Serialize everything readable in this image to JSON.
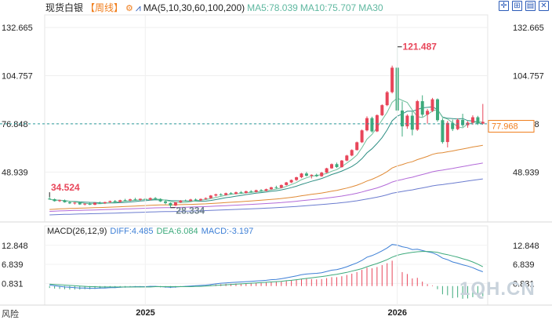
{
  "header": {
    "instrument": "现货白银",
    "period": "【周线】",
    "ma_label": "MA(5,10,30,60,100,200)",
    "ma5": "MA5:78.039",
    "ma10": "MA10:75.707",
    "ma30": "MA30"
  },
  "macd_header": {
    "label": "MACD(26,12,9)",
    "diff": "DIFF:4.485",
    "dea": "DEA:6.084",
    "macd": "MACD:-3.197"
  },
  "price_axis": {
    "left_ticks": [
      "132.665",
      "104.757",
      "76.848",
      "48.939"
    ],
    "right_ticks": [
      "132.665",
      "104.757",
      "76.848",
      "48.939"
    ],
    "current_price": "77.968"
  },
  "macd_axis": {
    "ticks": [
      "12.848",
      "6.839",
      "0.831"
    ]
  },
  "x_labels": [
    "2025",
    "2026"
  ],
  "annotations": {
    "high": "121.487",
    "low": "28.334",
    "left_high": "34.524"
  },
  "watermark": "1QH.CN",
  "disclaimer": "风险",
  "colors": {
    "up": "#e8465a",
    "down": "#3daa7c",
    "ma5": "#6fbf9b",
    "ma10": "#2e8f84",
    "ma30": "#e08a35",
    "ma60": "#b36ad8",
    "ma100": "#6b7ccf"
  },
  "chart_data": {
    "type": "candlestick",
    "ylim": [
      20,
      140
    ],
    "macd_ylim": [
      -6,
      16
    ],
    "candles": [
      [
        33.5,
        34.5,
        32.9,
        33.2
      ],
      [
        33.2,
        33.6,
        31.8,
        32.1
      ],
      [
        32.1,
        32.9,
        31.6,
        32.6
      ],
      [
        32.6,
        33.0,
        31.2,
        31.4
      ],
      [
        31.4,
        31.9,
        30.4,
        30.8
      ],
      [
        30.8,
        31.5,
        30.1,
        31.2
      ],
      [
        31.2,
        31.6,
        29.9,
        30.2
      ],
      [
        30.2,
        30.9,
        29.6,
        30.6
      ],
      [
        30.6,
        31.1,
        29.8,
        30.0
      ],
      [
        30.0,
        31.4,
        29.7,
        31.1
      ],
      [
        31.1,
        31.8,
        30.5,
        30.9
      ],
      [
        30.9,
        31.7,
        30.4,
        31.5
      ],
      [
        31.5,
        32.4,
        31.0,
        32.1
      ],
      [
        32.1,
        32.7,
        31.3,
        31.6
      ],
      [
        31.6,
        32.9,
        31.2,
        32.6
      ],
      [
        32.6,
        33.4,
        32.0,
        32.4
      ],
      [
        32.4,
        33.5,
        32.0,
        33.1
      ],
      [
        33.1,
        34.0,
        32.5,
        32.8
      ],
      [
        32.8,
        33.6,
        32.2,
        33.4
      ],
      [
        33.4,
        33.9,
        32.6,
        32.9
      ],
      [
        32.9,
        34.2,
        32.5,
        33.8
      ],
      [
        33.8,
        34.4,
        33.0,
        33.3
      ],
      [
        33.3,
        33.7,
        31.6,
        31.9
      ],
      [
        31.9,
        32.6,
        30.2,
        31.0
      ],
      [
        31.0,
        31.3,
        28.3,
        29.5
      ],
      [
        29.5,
        31.6,
        29.2,
        31.4
      ],
      [
        31.4,
        32.7,
        31.0,
        32.4
      ],
      [
        32.4,
        33.0,
        31.8,
        32.2
      ],
      [
        32.2,
        33.4,
        31.9,
        33.0
      ],
      [
        33.0,
        33.6,
        32.2,
        32.5
      ],
      [
        32.5,
        33.6,
        32.1,
        33.3
      ],
      [
        33.3,
        34.2,
        32.9,
        33.8
      ],
      [
        33.8,
        35.6,
        33.5,
        35.3
      ],
      [
        35.3,
        36.4,
        34.7,
        36.0
      ],
      [
        36.0,
        36.6,
        35.2,
        35.6
      ],
      [
        35.6,
        37.0,
        35.3,
        36.7
      ],
      [
        36.7,
        37.3,
        35.9,
        36.3
      ],
      [
        36.3,
        37.6,
        36.0,
        37.2
      ],
      [
        37.2,
        37.9,
        36.4,
        36.8
      ],
      [
        36.8,
        38.1,
        36.5,
        37.8
      ],
      [
        37.8,
        38.4,
        37.0,
        37.4
      ],
      [
        37.4,
        38.7,
        37.1,
        38.4
      ],
      [
        38.4,
        39.0,
        37.6,
        38.0
      ],
      [
        38.0,
        39.3,
        37.7,
        39.0
      ],
      [
        39.0,
        40.4,
        38.6,
        40.1
      ],
      [
        40.1,
        41.0,
        39.3,
        39.8
      ],
      [
        39.8,
        41.7,
        39.5,
        41.4
      ],
      [
        41.4,
        43.2,
        41.1,
        42.9
      ],
      [
        42.9,
        44.6,
        42.5,
        44.3
      ],
      [
        44.3,
        46.2,
        43.8,
        45.9
      ],
      [
        45.9,
        48.4,
        45.4,
        48.1
      ],
      [
        48.1,
        49.0,
        46.4,
        46.8
      ],
      [
        46.8,
        47.6,
        45.2,
        47.3
      ],
      [
        47.3,
        48.0,
        46.1,
        46.5
      ],
      [
        46.5,
        49.0,
        46.2,
        48.6
      ],
      [
        48.6,
        51.4,
        48.3,
        51.1
      ],
      [
        51.1,
        53.9,
        50.8,
        53.5
      ],
      [
        53.5,
        54.4,
        51.3,
        51.8
      ],
      [
        51.8,
        55.9,
        51.5,
        55.6
      ],
      [
        55.6,
        58.9,
        55.2,
        58.5
      ],
      [
        58.5,
        62.1,
        58.1,
        61.7
      ],
      [
        61.7,
        66.6,
        61.4,
        66.2
      ],
      [
        66.2,
        73.6,
        65.8,
        73.1
      ],
      [
        73.1,
        81.2,
        72.5,
        80.2
      ],
      [
        80.2,
        81.0,
        71.8,
        72.5
      ],
      [
        72.5,
        82.3,
        72.1,
        81.9
      ],
      [
        81.9,
        88.2,
        81.4,
        87.7
      ],
      [
        87.7,
        95.9,
        87.1,
        95.2
      ],
      [
        95.2,
        110.6,
        94.5,
        109.4
      ],
      [
        109.4,
        121.5,
        83.4,
        84.6
      ],
      [
        84.6,
        89.8,
        69.5,
        75.4
      ],
      [
        75.4,
        82.4,
        74.0,
        81.6
      ],
      [
        81.6,
        84.3,
        70.2,
        73.5
      ],
      [
        73.5,
        90.7,
        72.8,
        90.0
      ],
      [
        90.0,
        93.4,
        81.0,
        82.2
      ],
      [
        82.2,
        85.5,
        77.0,
        84.4
      ],
      [
        84.4,
        91.9,
        83.7,
        91.1
      ],
      [
        91.1,
        91.6,
        78.1,
        79.0
      ],
      [
        79.0,
        80.1,
        65.4,
        66.3
      ],
      [
        66.3,
        78.6,
        63.2,
        77.4
      ],
      [
        77.4,
        79.3,
        72.7,
        73.8
      ],
      [
        73.8,
        80.0,
        73.2,
        79.2
      ],
      [
        79.2,
        82.7,
        75.0,
        76.1
      ],
      [
        76.1,
        78.4,
        74.6,
        77.6
      ],
      [
        77.6,
        81.8,
        76.3,
        80.7
      ],
      [
        80.7,
        81.5,
        76.2,
        77.0
      ],
      [
        77.0,
        88.4,
        76.7,
        78.0
      ]
    ],
    "macd_hist": [
      -0.6,
      -0.8,
      -0.9,
      -1.0,
      -1.1,
      -1.1,
      -1.1,
      -1.0,
      -1.0,
      -0.9,
      -0.8,
      -0.7,
      -0.6,
      -0.6,
      -0.5,
      -0.5,
      -0.4,
      -0.4,
      -0.4,
      -0.3,
      -0.3,
      -0.3,
      -0.4,
      -0.5,
      -0.6,
      -0.5,
      -0.3,
      -0.2,
      -0.1,
      -0.1,
      0.0,
      0.1,
      0.3,
      0.5,
      0.6,
      0.7,
      0.7,
      0.8,
      0.8,
      0.9,
      0.9,
      1.0,
      1.0,
      1.1,
      1.2,
      1.3,
      1.4,
      1.6,
      1.8,
      2.0,
      2.3,
      2.3,
      2.2,
      2.1,
      2.2,
      2.5,
      2.8,
      2.8,
      3.1,
      3.5,
      3.9,
      4.4,
      5.1,
      5.8,
      5.6,
      6.0,
      6.6,
      7.2,
      8.0,
      6.2,
      4.4,
      3.8,
      2.4,
      2.6,
      1.4,
      0.6,
      0.2,
      -1.0,
      -2.6,
      -2.9,
      -3.8,
      -3.6,
      -4.0,
      -3.9,
      -3.5,
      -3.4,
      -3.2
    ],
    "macd_diff": [
      0.3,
      0.1,
      -0.1,
      -0.3,
      -0.4,
      -0.5,
      -0.6,
      -0.6,
      -0.7,
      -0.7,
      -0.6,
      -0.6,
      -0.5,
      -0.5,
      -0.4,
      -0.3,
      -0.3,
      -0.2,
      -0.2,
      -0.2,
      -0.1,
      -0.1,
      -0.2,
      -0.3,
      -0.4,
      -0.3,
      -0.2,
      -0.1,
      0.0,
      0.1,
      0.2,
      0.3,
      0.5,
      0.7,
      0.9,
      1.0,
      1.1,
      1.2,
      1.3,
      1.4,
      1.5,
      1.6,
      1.7,
      1.8,
      2.0,
      2.1,
      2.3,
      2.6,
      2.9,
      3.2,
      3.6,
      3.8,
      3.9,
      4.0,
      4.2,
      4.6,
      5.0,
      5.2,
      5.6,
      6.1,
      6.7,
      7.3,
      8.1,
      9.1,
      9.6,
      10.3,
      11.1,
      12.0,
      13.1,
      12.9,
      12.4,
      12.1,
      11.5,
      11.6,
      11.2,
      10.8,
      10.5,
      9.8,
      8.8,
      8.3,
      7.6,
      7.2,
      6.7,
      6.3,
      5.8,
      5.1,
      4.5
    ],
    "macd_dea": [
      0.6,
      0.5,
      0.4,
      0.3,
      0.2,
      0.1,
      0.0,
      -0.1,
      -0.2,
      -0.2,
      -0.3,
      -0.3,
      -0.3,
      -0.3,
      -0.3,
      -0.3,
      -0.3,
      -0.3,
      -0.3,
      -0.3,
      -0.3,
      -0.2,
      -0.2,
      -0.2,
      -0.2,
      -0.2,
      -0.2,
      -0.2,
      -0.2,
      -0.1,
      -0.1,
      0.0,
      0.1,
      0.2,
      0.3,
      0.4,
      0.5,
      0.6,
      0.7,
      0.8,
      0.9,
      1.0,
      1.1,
      1.2,
      1.3,
      1.4,
      1.5,
      1.7,
      1.8,
      2.0,
      2.2,
      2.4,
      2.6,
      2.8,
      3.0,
      3.2,
      3.5,
      3.7,
      4.0,
      4.3,
      4.7,
      5.1,
      5.5,
      6.1,
      6.6,
      7.1,
      7.7,
      8.3,
      9.1,
      9.7,
      10.1,
      10.4,
      10.6,
      10.8,
      10.9,
      10.9,
      10.8,
      10.6,
      10.2,
      9.9,
      9.5,
      9.1,
      8.6,
      8.2,
      7.6,
      6.9,
      6.1
    ],
    "ma_last_values": {
      "MA5": 78.039,
      "MA10": 75.707
    }
  }
}
